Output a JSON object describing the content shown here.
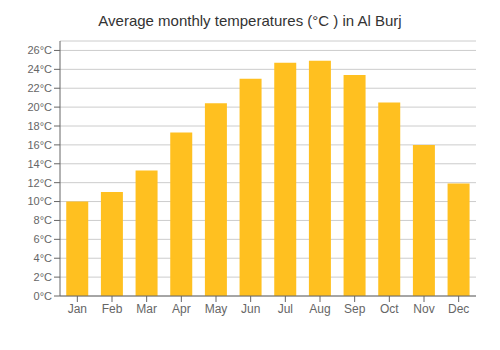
{
  "chart_data": {
    "type": "bar",
    "title": "Average monthly temperatures (°C ) in Al Burj",
    "categories": [
      "Jan",
      "Feb",
      "Mar",
      "Apr",
      "May",
      "Jun",
      "Jul",
      "Aug",
      "Sep",
      "Oct",
      "Nov",
      "Dec"
    ],
    "values": [
      10.0,
      11.0,
      13.3,
      17.3,
      20.4,
      23.0,
      24.7,
      24.9,
      23.4,
      20.5,
      16.0,
      11.9
    ],
    "color": "#FFC020",
    "ylim": [
      0,
      27
    ],
    "yticks": [
      {
        "value": 0,
        "label": "0°C"
      },
      {
        "value": 2,
        "label": "2°C"
      },
      {
        "value": 4,
        "label": "4°C"
      },
      {
        "value": 6,
        "label": "6°C"
      },
      {
        "value": 8,
        "label": "8°C"
      },
      {
        "value": 10,
        "label": "10°C"
      },
      {
        "value": 12,
        "label": "12°C"
      },
      {
        "value": 14,
        "label": "14°C"
      },
      {
        "value": 16,
        "label": "16°C"
      },
      {
        "value": 18,
        "label": "18°C"
      },
      {
        "value": 20,
        "label": "20°C"
      },
      {
        "value": 22,
        "label": "22°C"
      },
      {
        "value": 24,
        "label": "24°C"
      },
      {
        "value": 26,
        "label": "26°C"
      }
    ],
    "grid": true
  }
}
